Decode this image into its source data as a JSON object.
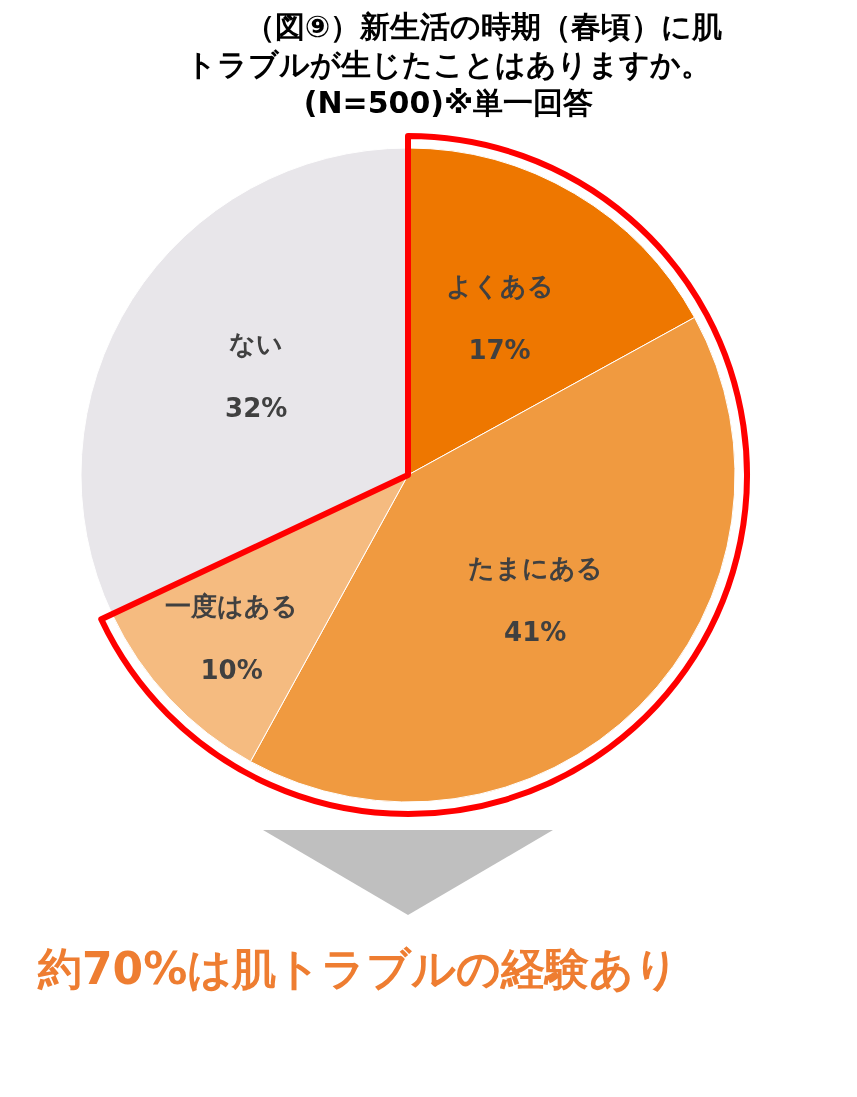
{
  "chart_data": {
    "type": "pie",
    "title": "（図⑨）新生活の時期（春頃）に肌トラブルが生じたことはありますか。",
    "subtitle": "(N=500)※単一回答",
    "value_labels": [
      "17%",
      "41%",
      "10%",
      "32%"
    ],
    "categories": [
      "よくある",
      "たまにある",
      "一度はある",
      "ない"
    ],
    "values": [
      17,
      41,
      10,
      32
    ],
    "colors": [
      "#ee7700",
      "#f09a40",
      "#f5bb80",
      "#e8e6ea"
    ],
    "data_labels": true,
    "annotations": [
      "約70%は肌トラブルの経験あり"
    ]
  }
}
